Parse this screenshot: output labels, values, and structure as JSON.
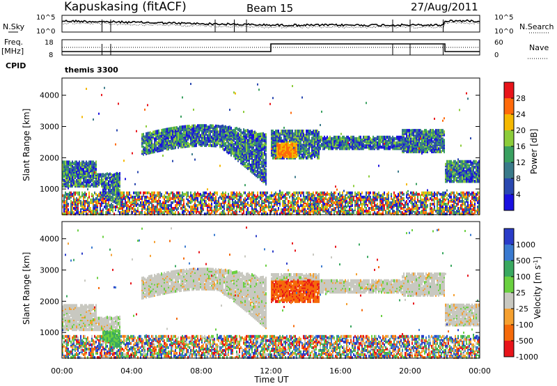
{
  "header": {
    "station": "Kapuskasing (fitACF)",
    "beam": "Beam 15",
    "date": "27/Aug/2011"
  },
  "left_labels": {
    "nsky": "N.Sky",
    "freq_line1": "Freq.",
    "freq_line2": "[MHz]",
    "cpid": "CPID"
  },
  "right_labels": {
    "nsearch": "N.Search",
    "nave": "Nave"
  },
  "noise_panel": {
    "ytick_top": "10^5",
    "ytick_bottom": "10^0",
    "rtick_top": "10^5",
    "rtick_bottom": "10^0"
  },
  "freq_panel": {
    "ytick_top": "18",
    "ytick_bottom": "8",
    "rtick_top": "60",
    "rtick_bottom": "0"
  },
  "cpid_panel": {
    "program": "themis 3300"
  },
  "chart_data": [
    {
      "type": "heatmap",
      "name_label": "Power [dB]",
      "ylabel": "Slant Range [km]",
      "yticks": [
        "1000",
        "2000",
        "3000",
        "4000"
      ],
      "ylim": [
        180,
        4550
      ],
      "colorbar_ticks": [
        "28",
        "24",
        "20",
        "16",
        "12",
        "8",
        "4"
      ],
      "colorbar_colors": [
        "#e8141a",
        "#ff6a0a",
        "#f5b800",
        "#8ccc3a",
        "#3aa060",
        "#3a7a8a",
        "#2a48b0",
        "#1a10e0"
      ],
      "x_range_hours": [
        0,
        24
      ],
      "echo_bands_km": [
        {
          "from_h": 0,
          "to_h": 3.3,
          "range": [
            1100,
            1900
          ]
        },
        {
          "from_h": 4.5,
          "to_h": 11.5,
          "range": [
            1900,
            2900
          ]
        },
        {
          "from_h": 12.0,
          "to_h": 14.5,
          "range": [
            2000,
            3000
          ]
        },
        {
          "from_h": 19.5,
          "to_h": 22.0,
          "range": [
            2100,
            2900
          ]
        },
        {
          "from_h": 22.0,
          "to_h": 24.0,
          "range": [
            1200,
            1900
          ]
        }
      ]
    },
    {
      "type": "heatmap",
      "name_label": "Velocity [m s^-1]",
      "ylabel": "Slant Range [km]",
      "yticks": [
        "1000",
        "2000",
        "3000",
        "4000"
      ],
      "ylim": [
        180,
        4550
      ],
      "colorbar_ticks": [
        "1000",
        "500",
        "100",
        "25",
        "-25",
        "-100",
        "-500",
        "-1000"
      ],
      "colorbar_colors": [
        "#2a3cc8",
        "#3a7ad0",
        "#3aa860",
        "#6ad040",
        "#c8c8c0",
        "#f5a030",
        "#f56a0a",
        "#e8141a"
      ],
      "x_range_hours": [
        0,
        24
      ]
    }
  ],
  "xaxis": {
    "ticks": [
      "00:00",
      "04:00",
      "08:00",
      "12:00",
      "16:00",
      "20:00",
      "00:00"
    ],
    "label": "Time UT"
  }
}
